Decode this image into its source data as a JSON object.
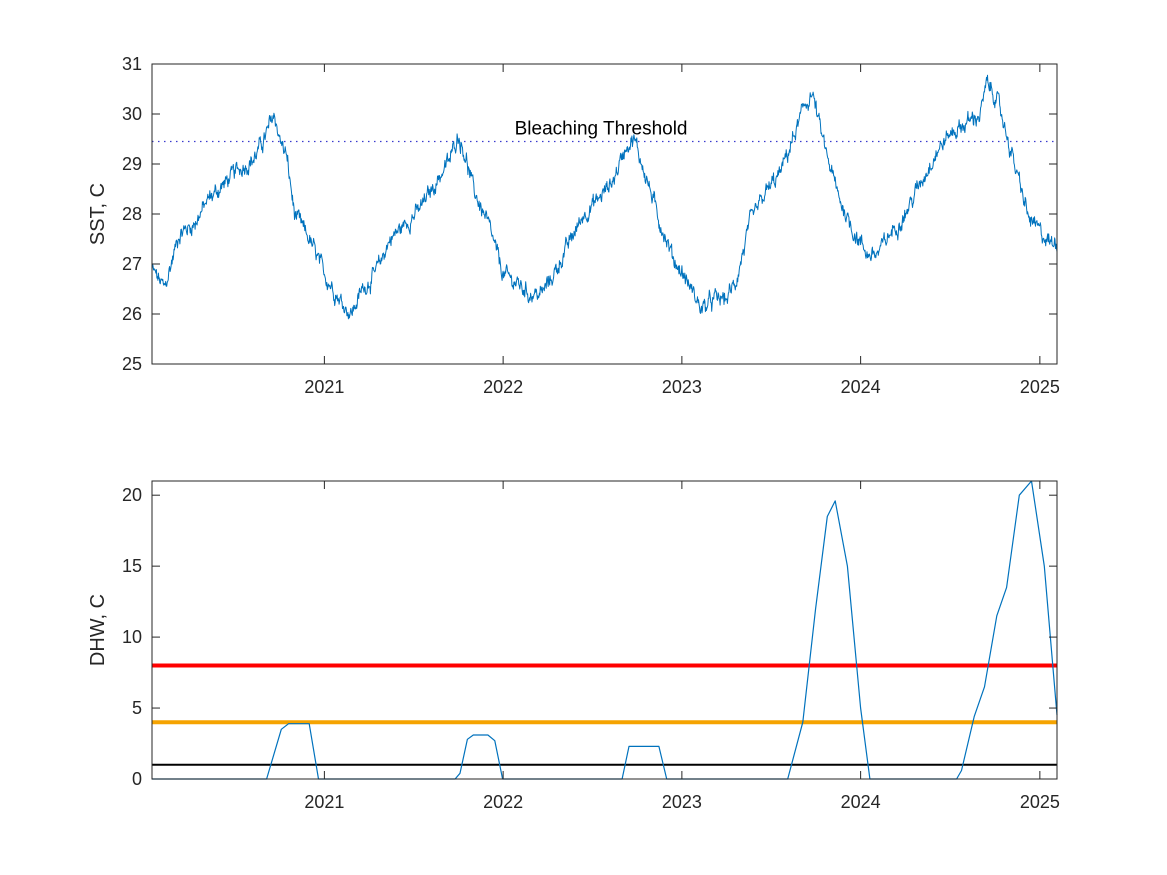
{
  "colors": {
    "series": "#0072BD",
    "threshold": "#3a3acd",
    "alert2": "#ff0000",
    "alert1": "#f5a300",
    "watch": "#000000",
    "axis": "#262626"
  },
  "chart_data": [
    {
      "type": "line",
      "title": "",
      "xlabel": "",
      "ylabel": "SST, C",
      "xlim": [
        "2020-01-15",
        "2025-02-05"
      ],
      "ylim": [
        25,
        31
      ],
      "xticks": [
        "2021",
        "2022",
        "2023",
        "2024",
        "2025"
      ],
      "yticks": [
        "25",
        "26",
        "27",
        "28",
        "29",
        "30",
        "31"
      ],
      "grid": false,
      "reference_line": {
        "y": 29.45,
        "style": "dotted",
        "label": "Bleaching Threshold"
      },
      "series": [
        {
          "x": [
            "2020-01-15",
            "2020-02-10",
            "2020-03-10",
            "2020-04-10",
            "2020-05-10",
            "2020-06-10",
            "2020-07-10",
            "2020-08-10",
            "2020-09-05",
            "2020-09-20",
            "2020-10-05",
            "2020-10-15",
            "2020-11-01",
            "2020-12-01",
            "2021-01-01",
            "2021-02-01",
            "2021-02-25",
            "2021-03-20",
            "2021-04-15",
            "2021-05-15",
            "2021-06-15",
            "2021-07-15",
            "2021-08-15",
            "2021-09-15",
            "2021-10-01",
            "2021-10-15",
            "2021-11-01",
            "2021-12-01",
            "2022-01-01",
            "2022-02-01",
            "2022-02-25",
            "2022-03-20",
            "2022-04-15",
            "2022-05-15",
            "2022-06-15",
            "2022-07-15",
            "2022-08-15",
            "2022-09-10",
            "2022-09-25",
            "2022-10-15",
            "2022-11-15",
            "2022-12-15",
            "2023-01-15",
            "2023-02-10",
            "2023-03-10",
            "2023-04-01",
            "2023-04-20",
            "2023-05-20",
            "2023-06-20",
            "2023-07-20",
            "2023-08-20",
            "2023-09-10",
            "2023-09-25",
            "2023-10-15",
            "2023-11-15",
            "2023-12-15",
            "2024-01-15",
            "2024-02-05",
            "2024-03-01",
            "2024-04-01",
            "2024-05-01",
            "2024-06-01",
            "2024-07-01",
            "2024-08-01",
            "2024-09-01",
            "2024-09-15",
            "2024-10-01",
            "2024-10-20",
            "2024-11-15",
            "2024-12-10",
            "2025-01-05",
            "2025-01-25",
            "2025-02-05"
          ],
          "values": [
            26.9,
            26.5,
            27.6,
            27.8,
            28.3,
            28.6,
            28.9,
            29.1,
            29.6,
            30.0,
            29.4,
            29.2,
            28.0,
            27.5,
            26.8,
            26.3,
            26.0,
            26.5,
            26.8,
            27.5,
            27.8,
            28.1,
            28.6,
            29.1,
            29.6,
            29.2,
            28.5,
            27.8,
            26.8,
            26.6,
            26.4,
            26.4,
            26.8,
            27.4,
            28.0,
            28.3,
            28.7,
            29.4,
            29.5,
            28.9,
            27.9,
            27.1,
            26.6,
            26.1,
            26.3,
            26.3,
            26.6,
            27.8,
            28.4,
            28.8,
            29.6,
            30.2,
            30.4,
            29.5,
            28.4,
            27.7,
            27.2,
            27.2,
            27.6,
            28.0,
            28.6,
            29.2,
            29.6,
            29.8,
            30.0,
            30.6,
            30.4,
            29.8,
            28.8,
            27.9,
            27.6,
            27.4,
            27.5
          ]
        }
      ]
    },
    {
      "type": "line",
      "title": "",
      "xlabel": "",
      "ylabel": "DHW, C",
      "xlim": [
        "2020-01-15",
        "2025-02-05"
      ],
      "ylim": [
        0,
        21
      ],
      "xticks": [
        "2021",
        "2022",
        "2023",
        "2024",
        "2025"
      ],
      "yticks": [
        "0",
        "5",
        "10",
        "15",
        "20"
      ],
      "grid": false,
      "hlines": [
        {
          "y": 8,
          "color_key": "alert2"
        },
        {
          "y": 4,
          "color_key": "alert1"
        },
        {
          "y": 1,
          "color_key": "watch"
        }
      ],
      "series": [
        {
          "x": [
            "2020-01-15",
            "2020-09-05",
            "2020-10-05",
            "2020-10-20",
            "2020-12-01",
            "2020-12-20",
            "2021-09-25",
            "2021-10-05",
            "2021-10-20",
            "2021-11-01",
            "2021-12-01",
            "2021-12-15",
            "2021-12-31",
            "2022-09-01",
            "2022-09-15",
            "2022-11-15",
            "2022-12-01",
            "2023-08-05",
            "2023-09-05",
            "2023-10-01",
            "2023-10-25",
            "2023-11-10",
            "2023-12-05",
            "2024-01-01",
            "2024-01-20",
            "2024-07-15",
            "2024-07-25",
            "2024-08-20",
            "2024-09-10",
            "2024-10-05",
            "2024-10-25",
            "2024-11-20",
            "2024-12-15",
            "2025-01-10",
            "2025-02-05"
          ],
          "values": [
            0,
            0,
            3.5,
            3.9,
            3.9,
            0,
            0,
            0.4,
            2.8,
            3.1,
            3.1,
            2.7,
            0,
            0,
            2.3,
            2.3,
            0,
            0,
            4.0,
            12.0,
            18.5,
            19.6,
            15.0,
            5.0,
            0,
            0,
            0.6,
            4.4,
            6.5,
            11.5,
            13.5,
            20.0,
            21.0,
            15.0,
            4.5
          ]
        }
      ]
    }
  ]
}
